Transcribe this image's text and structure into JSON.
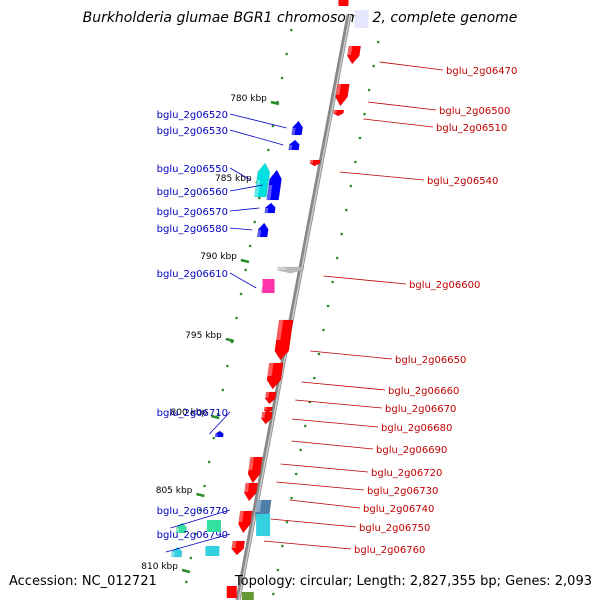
{
  "title": "Burkholderia glumae BGR1 chromosome 2, complete genome",
  "footer": {
    "accession": "Accession: NC_012721",
    "summary": "Topology: circular; Length: 2,827,355 bp; Genes: 2,093"
  },
  "colors": {
    "forward_label": "#0000c0",
    "reverse_label": "#c00000",
    "backbone": "#888888",
    "tick": "#2a8a2a"
  },
  "ticks": [
    "780 kbp",
    "785 kbp",
    "790 kbp",
    "795 kbp",
    "800 kbp",
    "805 kbp",
    "810 kbp"
  ],
  "forward_genes": [
    {
      "label": "bglu_2g06520",
      "color": "#0000ff"
    },
    {
      "label": "bglu_2g06530",
      "color": "#0000ff"
    },
    {
      "label": "bglu_2g06550",
      "color": "#00e0e0"
    },
    {
      "label": "bglu_2g06560",
      "color": "#0000ff"
    },
    {
      "label": "bglu_2g06570",
      "color": "#0000ff"
    },
    {
      "label": "bglu_2g06580",
      "color": "#0000ff"
    },
    {
      "label": "bglu_2g06610",
      "color": "#ff33aa"
    },
    {
      "label": "bglu_2g06710",
      "color": "#0000ff"
    },
    {
      "label": "bglu_2g06770",
      "color": "#33e0a0"
    },
    {
      "label": "bglu_2g06790",
      "color": "#33d0e0"
    }
  ],
  "reverse_genes": [
    {
      "label": "bglu_2g06470",
      "color": "#ff0000"
    },
    {
      "label": "bglu_2g06500",
      "color": "#ff0000"
    },
    {
      "label": "bglu_2g06510",
      "color": "#ff0000"
    },
    {
      "label": "bglu_2g06540",
      "color": "#ff0000"
    },
    {
      "label": "bglu_2g06600",
      "color": "#bbbbbb"
    },
    {
      "label": "bglu_2g06650",
      "color": "#ff0000"
    },
    {
      "label": "bglu_2g06660",
      "color": "#ff0000"
    },
    {
      "label": "bglu_2g06670",
      "color": "#ff0000"
    },
    {
      "label": "bglu_2g06680",
      "color": "#ff0000"
    },
    {
      "label": "bglu_2g06690",
      "color": "#ff0000"
    },
    {
      "label": "bglu_2g06720",
      "color": "#ff0000"
    },
    {
      "label": "bglu_2g06730",
      "color": "#ff0000"
    },
    {
      "label": "bglu_2g06740",
      "color": "#4f7fa8"
    },
    {
      "label": "bglu_2g06750",
      "color": "#ff0000"
    },
    {
      "label": "bglu_2g06760",
      "color": "#ff0000"
    }
  ]
}
